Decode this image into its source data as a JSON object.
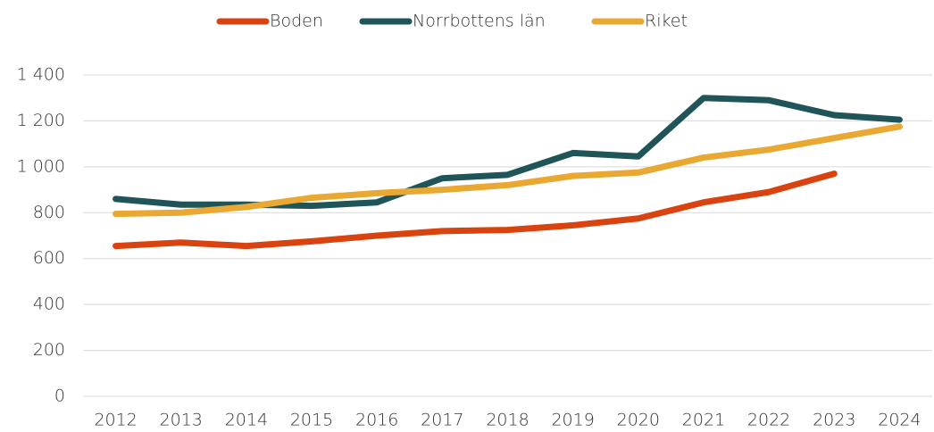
{
  "chart_data": {
    "type": "line",
    "categories": [
      "2012",
      "2013",
      "2014",
      "2015",
      "2016",
      "2017",
      "2018",
      "2019",
      "2020",
      "2021",
      "2022",
      "2023",
      "2024"
    ],
    "series": [
      {
        "name": "Boden",
        "color": "#d9430f",
        "values": [
          655,
          670,
          655,
          675,
          700,
          720,
          725,
          745,
          775,
          845,
          890,
          970,
          null
        ]
      },
      {
        "name": "Norrbottens län",
        "color": "#1f5459",
        "values": [
          860,
          835,
          835,
          830,
          845,
          950,
          965,
          1060,
          1045,
          1300,
          1290,
          1225,
          1205
        ]
      },
      {
        "name": "Riket",
        "color": "#e8a832",
        "values": [
          795,
          800,
          825,
          865,
          885,
          900,
          920,
          960,
          975,
          1040,
          1075,
          1125,
          1175
        ]
      }
    ],
    "ylim": [
      0,
      1400
    ],
    "yticks": [
      0,
      200,
      400,
      600,
      800,
      {
        "value": 1000,
        "label": "1 000"
      },
      {
        "value": 1200,
        "label": "1 200"
      },
      {
        "value": 1400,
        "label": "1 400"
      }
    ],
    "grid": true,
    "legend": "top"
  }
}
